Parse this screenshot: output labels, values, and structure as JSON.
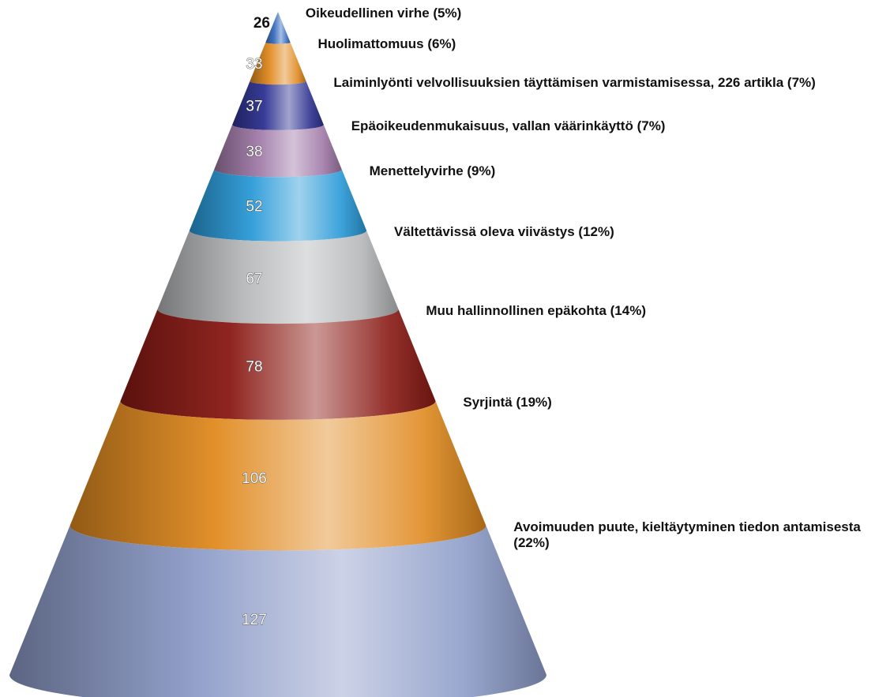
{
  "chart_data": {
    "type": "cone",
    "categories": [
      "Oikeudellinen virhe (5%)",
      "Huolimattomuus (6%)",
      "Laiminlyönti velvollisuuksien täyttämisen varmistamisessa, 226 artikla (7%)",
      "Epäoikeudenmukaisuus, vallan väärinkäyttö (7%)",
      "Menettelyvirhe (9%)",
      "Vältettävissä oleva viivästys (12%)",
      "Muu hallinnollinen epäkohta (14%)",
      "Syrjintä (19%)",
      "Avoimuuden puute, kieltäytyminen tiedon antamisesta (22%)"
    ],
    "values": [
      26,
      33,
      37,
      38,
      52,
      67,
      78,
      106,
      127
    ],
    "colors": [
      "#3a6fc0",
      "#e08a20",
      "#2e3290",
      "#a07aa8",
      "#2a9ad8",
      "#b4b6b8",
      "#8a1a14",
      "#e08a20",
      "#8d9cc8"
    ]
  }
}
